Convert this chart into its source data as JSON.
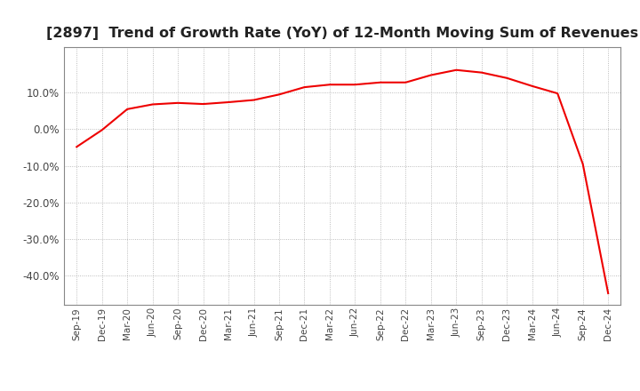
{
  "title": "[2897]  Trend of Growth Rate (YoY) of 12-Month Moving Sum of Revenues",
  "title_fontsize": 11.5,
  "line_color": "#ee0000",
  "background_color": "#ffffff",
  "grid_color": "#aaaaaa",
  "x_labels": [
    "Sep-19",
    "Dec-19",
    "Mar-20",
    "Jun-20",
    "Sep-20",
    "Dec-20",
    "Mar-21",
    "Jun-21",
    "Sep-21",
    "Dec-21",
    "Mar-22",
    "Jun-22",
    "Sep-22",
    "Dec-22",
    "Mar-23",
    "Jun-23",
    "Sep-23",
    "Dec-23",
    "Mar-24",
    "Jun-24",
    "Sep-24",
    "Dec-24"
  ],
  "y_values": [
    -0.048,
    -0.002,
    0.055,
    0.068,
    0.072,
    0.069,
    0.074,
    0.08,
    0.095,
    0.115,
    0.122,
    0.122,
    0.128,
    0.128,
    0.148,
    0.162,
    0.155,
    0.14,
    0.118,
    0.098,
    -0.095,
    -0.448
  ],
  "ylim": [
    -0.48,
    0.225
  ],
  "yticks": [
    -0.4,
    -0.3,
    -0.2,
    -0.1,
    0.0,
    0.1
  ]
}
